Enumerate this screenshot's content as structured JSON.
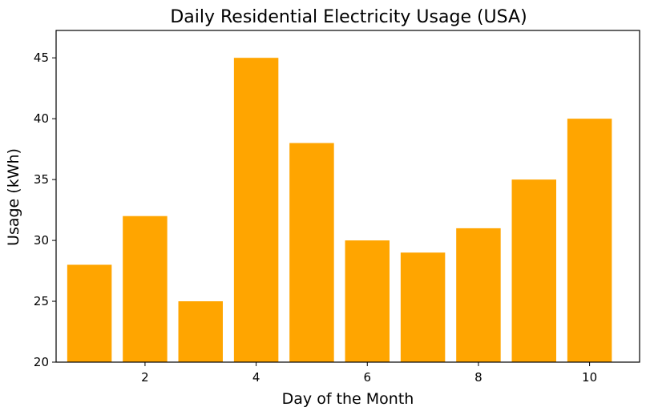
{
  "chart_data": {
    "type": "bar",
    "title": "Daily Residential Electricity Usage (USA)",
    "xlabel": "Day of the Month",
    "ylabel": "Usage (kWh)",
    "x": [
      1,
      2,
      3,
      4,
      5,
      6,
      7,
      8,
      9,
      10
    ],
    "values": [
      28,
      32,
      25,
      45,
      38,
      30,
      29,
      31,
      35,
      40
    ],
    "xlim": [
      0.4,
      10.9
    ],
    "ylim": [
      20,
      47.25
    ],
    "xticks": [
      2,
      4,
      6,
      8,
      10
    ],
    "yticks": [
      20,
      25,
      30,
      35,
      40,
      45
    ],
    "bar_color": "#ffa500",
    "grid": false,
    "legend": "none"
  }
}
